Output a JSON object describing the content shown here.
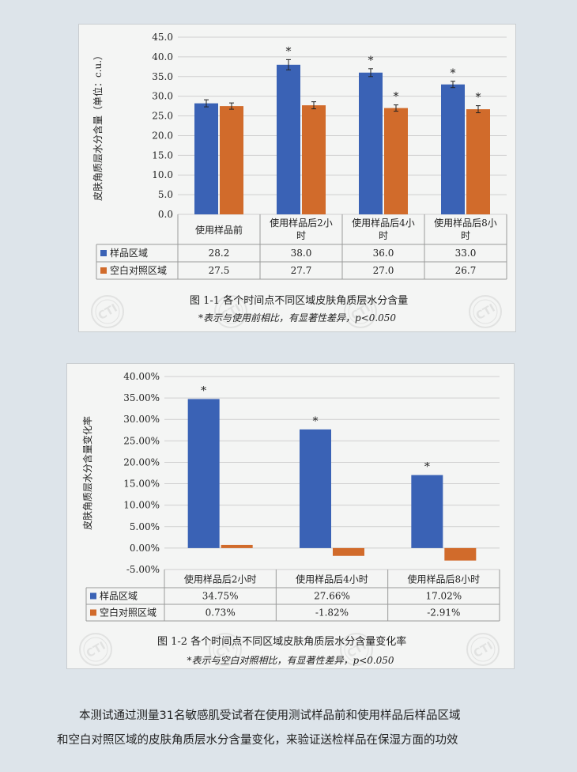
{
  "chart_data": [
    {
      "type": "bar",
      "ylabel": "皮肤角质层水分含量（单位：c.u.）",
      "yticks": [
        "45.0",
        "40.0",
        "35.0",
        "30.0",
        "25.0",
        "20.0",
        "15.0",
        "10.0",
        "5.0",
        "0.0"
      ],
      "ylim": [
        0,
        45
      ],
      "categories": [
        "使用样品前",
        "使用样品后2小时",
        "使用样品后4小时",
        "使用样品后8小时"
      ],
      "categories_wrapped": [
        [
          "使用样品前"
        ],
        [
          "使用样品后2小",
          "时"
        ],
        [
          "使用样品后4小",
          "时"
        ],
        [
          "使用样品后8小",
          "时"
        ]
      ],
      "series": [
        {
          "name": "样品区域",
          "color": "#3a62b5",
          "values": [
            28.2,
            38.0,
            36.0,
            33.0
          ],
          "labels": [
            "28.2",
            "38.0",
            "36.0",
            "33.0"
          ],
          "errors": [
            0.9,
            1.3,
            1.0,
            0.8
          ],
          "significant": [
            false,
            true,
            true,
            true
          ]
        },
        {
          "name": "空白对照区域",
          "color": "#d16b2b",
          "values": [
            27.5,
            27.7,
            27.0,
            26.7
          ],
          "labels": [
            "27.5",
            "27.7",
            "27.0",
            "26.7"
          ],
          "errors": [
            0.8,
            0.9,
            0.8,
            0.9
          ],
          "significant": [
            false,
            false,
            true,
            true
          ]
        }
      ],
      "significance_mark": "*",
      "caption": "图 1-1  各个时间点不同区域皮肤角质层水分含量",
      "note": "*表示与使用前相比，有显著性差异，p<0.050"
    },
    {
      "type": "bar",
      "ylabel": "皮肤角质层水分含量变化率",
      "yticks": [
        "40.00%",
        "35.00%",
        "30.00%",
        "25.00%",
        "20.00%",
        "15.00%",
        "10.00%",
        "5.00%",
        "0.00%",
        "-5.00%"
      ],
      "ylim": [
        -5,
        40
      ],
      "categories": [
        "使用样品后2小时",
        "使用样品后4小时",
        "使用样品后8小时"
      ],
      "series": [
        {
          "name": "样品区域",
          "color": "#3a62b5",
          "values": [
            34.75,
            27.66,
            17.02
          ],
          "labels": [
            "34.75%",
            "27.66%",
            "17.02%"
          ],
          "significant": [
            true,
            true,
            true
          ]
        },
        {
          "name": "空白对照区域",
          "color": "#d16b2b",
          "values": [
            0.73,
            -1.82,
            -2.91
          ],
          "labels": [
            "0.73%",
            "-1.82%",
            "-2.91%"
          ],
          "significant": [
            false,
            false,
            false
          ]
        }
      ],
      "significance_mark": "*",
      "caption": "图 1-2  各个时间点不同区域皮肤角质层水分含量变化率",
      "note": "*表示与空白对照相比，有显著性差异，p<0.050"
    }
  ],
  "watermark": "CTI",
  "body_text": [
    "本测试通过测量31名敏感肌受试者在使用测试样品前和使用样品后样品区域",
    "和空白对照区域的皮肤角质层水分含量变化，来验证送检样品在保湿方面的功效"
  ]
}
